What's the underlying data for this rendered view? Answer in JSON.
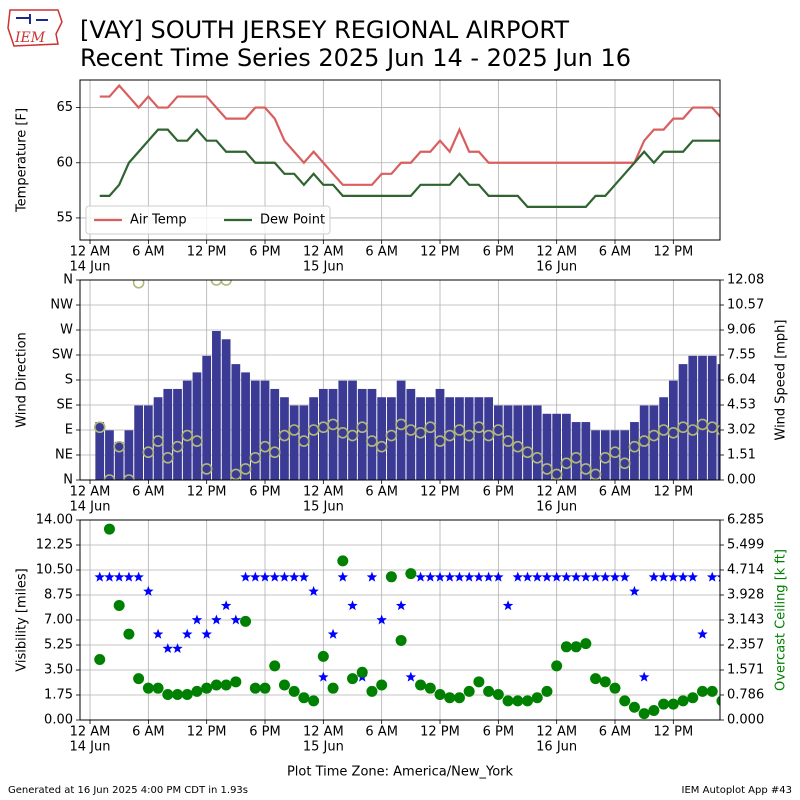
{
  "header": {
    "title": "[VAY] SOUTH JERSEY REGIONAL AIRPORT",
    "subtitle": "Recent Time Series 2025 Jun 14 - 2025 Jun 16",
    "logo_text": "IEM"
  },
  "footer": {
    "left": "Generated at 16 Jun 2025 4:00 PM CDT in 1.93s",
    "right": "IEM Autoplot App #43"
  },
  "chart_data": [
    {
      "type": "line",
      "ylabel": "Temperature [F]",
      "grid": true,
      "legend": "lower left",
      "xlim": [
        -1.03,
        64.8
      ],
      "xticks": [
        {
          "value": 0,
          "label": "12 AM"
        },
        {
          "value": 6,
          "label": "6 AM"
        },
        {
          "value": 12,
          "label": "12 PM"
        },
        {
          "value": 18,
          "label": "6 PM"
        },
        {
          "value": 24,
          "label": "12 AM"
        },
        {
          "value": 30,
          "label": "6 AM"
        },
        {
          "value": 36,
          "label": "12 PM"
        },
        {
          "value": 42,
          "label": "6 PM"
        },
        {
          "value": 48,
          "label": "12 AM"
        },
        {
          "value": 54,
          "label": "6 AM"
        },
        {
          "value": 60,
          "label": "12 PM"
        }
      ],
      "xtick_dates": [
        {
          "value": 0,
          "label": "14 Jun"
        },
        {
          "value": 24,
          "label": "15 Jun"
        },
        {
          "value": 48,
          "label": "16 Jun"
        }
      ],
      "ylim": [
        53,
        67.5
      ],
      "yticks": [
        55,
        60,
        65
      ],
      "x": [
        1,
        2,
        3,
        4,
        5,
        6,
        7,
        8,
        9,
        10,
        11,
        12,
        13,
        14,
        15,
        16,
        17,
        18,
        19,
        20,
        21,
        22,
        23,
        24,
        25,
        26,
        27,
        28,
        29,
        30,
        31,
        32,
        33,
        34,
        35,
        36,
        37,
        38,
        39,
        40,
        41,
        42,
        43,
        44,
        45,
        46,
        47,
        48,
        49,
        50,
        51,
        52,
        53,
        54,
        55,
        56,
        57,
        58,
        59,
        60,
        61,
        62,
        63,
        64,
        65
      ],
      "series": [
        {
          "name": "Air Temp",
          "color": "#d95f5f",
          "values": [
            66,
            66,
            67,
            66,
            65,
            66,
            65,
            65,
            66,
            66,
            66,
            66,
            65,
            64,
            64,
            64,
            65,
            65,
            64,
            62,
            61,
            60,
            61,
            60,
            59,
            58,
            58,
            58,
            58,
            59,
            59,
            60,
            60,
            61,
            61,
            62,
            61,
            63,
            61,
            61,
            60,
            60,
            60,
            60,
            60,
            60,
            60,
            60,
            60,
            60,
            60,
            60,
            60,
            60,
            60,
            60,
            62,
            63,
            63,
            64,
            64,
            65,
            65,
            65,
            64
          ]
        },
        {
          "name": "Dew Point",
          "color": "#2f6330",
          "values": [
            57,
            57,
            58,
            60,
            61,
            62,
            63,
            63,
            62,
            62,
            63,
            62,
            62,
            61,
            61,
            61,
            60,
            60,
            60,
            59,
            59,
            58,
            59,
            58,
            58,
            57,
            57,
            57,
            57,
            57,
            57,
            57,
            57,
            58,
            58,
            58,
            58,
            59,
            58,
            58,
            57,
            57,
            57,
            57,
            56,
            56,
            56,
            56,
            56,
            56,
            56,
            57,
            57,
            58,
            59,
            60,
            61,
            60,
            61,
            61,
            61,
            62,
            62,
            62,
            62
          ]
        }
      ]
    },
    {
      "type": "combo",
      "ylabel": "Wind Direction",
      "y2label": "Wind Speed [mph]",
      "grid": true,
      "xlim": [
        -1.03,
        64.8
      ],
      "xticks": [
        {
          "value": 0,
          "label": "12 AM"
        },
        {
          "value": 6,
          "label": "6 AM"
        },
        {
          "value": 12,
          "label": "12 PM"
        },
        {
          "value": 18,
          "label": "6 PM"
        },
        {
          "value": 24,
          "label": "12 AM"
        },
        {
          "value": 30,
          "label": "6 AM"
        },
        {
          "value": 36,
          "label": "12 PM"
        },
        {
          "value": 42,
          "label": "6 PM"
        },
        {
          "value": 48,
          "label": "12 AM"
        },
        {
          "value": 54,
          "label": "6 AM"
        },
        {
          "value": 60,
          "label": "12 PM"
        }
      ],
      "xtick_dates": [
        {
          "value": 0,
          "label": "14 Jun"
        },
        {
          "value": 24,
          "label": "15 Jun"
        },
        {
          "value": 48,
          "label": "16 Jun"
        }
      ],
      "ylim": [
        0,
        360
      ],
      "yticks": [
        {
          "value": 0,
          "label": "N"
        },
        {
          "value": 45,
          "label": "NE"
        },
        {
          "value": 90,
          "label": "E"
        },
        {
          "value": 135,
          "label": "SE"
        },
        {
          "value": 180,
          "label": "S"
        },
        {
          "value": 225,
          "label": "SW"
        },
        {
          "value": 270,
          "label": "W"
        },
        {
          "value": 315,
          "label": "NW"
        },
        {
          "value": 360,
          "label": "N"
        }
      ],
      "y2lim": [
        0,
        12.08
      ],
      "y2ticks": [
        {
          "value": 0,
          "label": "0.00"
        },
        1.51,
        3.02,
        4.53,
        6.04,
        7.55,
        9.06,
        10.57,
        12.08
      ],
      "x": [
        1,
        2,
        3,
        4,
        5,
        6,
        7,
        8,
        9,
        10,
        11,
        12,
        13,
        14,
        15,
        16,
        17,
        18,
        19,
        20,
        21,
        22,
        23,
        24,
        25,
        26,
        27,
        28,
        29,
        30,
        31,
        32,
        33,
        34,
        35,
        36,
        37,
        38,
        39,
        40,
        41,
        42,
        43,
        44,
        45,
        46,
        47,
        48,
        49,
        50,
        51,
        52,
        53,
        54,
        55,
        56,
        57,
        58,
        59,
        60,
        61,
        62,
        63,
        64,
        65
      ],
      "series": [
        {
          "kind": "bar",
          "axis": "y2",
          "color": "#3b3b96",
          "values": [
            3.5,
            3,
            2.3,
            3,
            4.5,
            4.5,
            5,
            5.5,
            5.5,
            6,
            6.5,
            7.5,
            9,
            8.5,
            7,
            6.5,
            6,
            6,
            5.5,
            5,
            4.5,
            4.5,
            5,
            5.5,
            5.5,
            6,
            6,
            5.5,
            5.5,
            5,
            5,
            6,
            5.5,
            5,
            5,
            5.5,
            5,
            5,
            5,
            5,
            5,
            4.5,
            4.5,
            4.5,
            4.5,
            4.5,
            4,
            4,
            4,
            3.5,
            3.5,
            3,
            3,
            3,
            3,
            3.5,
            4.5,
            4.5,
            5,
            6,
            7,
            7.5,
            7.5,
            7.5,
            7
          ]
        },
        {
          "kind": "scatter",
          "marker": "circle",
          "color": "#b3b878",
          "values": [
            95,
            0,
            60,
            0,
            355,
            50,
            70,
            40,
            60,
            80,
            70,
            20,
            360,
            360,
            10,
            20,
            40,
            60,
            50,
            80,
            90,
            70,
            90,
            95,
            100,
            85,
            80,
            95,
            70,
            60,
            80,
            100,
            90,
            85,
            95,
            70,
            80,
            90,
            80,
            95,
            80,
            90,
            70,
            60,
            50,
            40,
            20,
            10,
            30,
            40,
            20,
            10,
            40,
            50,
            30,
            60,
            70,
            80,
            90,
            85,
            95,
            90,
            100,
            95,
            90
          ]
        }
      ]
    },
    {
      "type": "combo",
      "ylabel": "Visibility [miles]",
      "y2label": "Overcast Ceiling [k ft]",
      "y2label_color": "#008000",
      "xlabel": "Plot Time Zone: America/New_York",
      "grid": true,
      "xlim": [
        -1.03,
        64.8
      ],
      "xticks": [
        {
          "value": 0,
          "label": "12 AM"
        },
        {
          "value": 6,
          "label": "6 AM"
        },
        {
          "value": 12,
          "label": "12 PM"
        },
        {
          "value": 18,
          "label": "6 PM"
        },
        {
          "value": 24,
          "label": "12 AM"
        },
        {
          "value": 30,
          "label": "6 AM"
        },
        {
          "value": 36,
          "label": "12 PM"
        },
        {
          "value": 42,
          "label": "6 PM"
        },
        {
          "value": 48,
          "label": "12 AM"
        },
        {
          "value": 54,
          "label": "6 AM"
        },
        {
          "value": 60,
          "label": "12 PM"
        }
      ],
      "xtick_dates": [
        {
          "value": 0,
          "label": "14 Jun"
        },
        {
          "value": 24,
          "label": "15 Jun"
        },
        {
          "value": 48,
          "label": "16 Jun"
        }
      ],
      "ylim": [
        0,
        14
      ],
      "yticks": [
        {
          "value": 0,
          "label": "0.00"
        },
        1.75,
        {
          "value": 3.5,
          "label": "3.50"
        },
        5.25,
        {
          "value": 7,
          "label": "7.00"
        },
        8.75,
        {
          "value": 10.5,
          "label": "10.50"
        },
        12.25,
        {
          "value": 14,
          "label": "14.00"
        }
      ],
      "y2lim": [
        0,
        6.285
      ],
      "y2ticks": [
        {
          "value": 0,
          "label": "0.000"
        },
        0.786,
        1.571,
        2.357,
        3.143,
        3.928,
        4.714,
        5.499,
        6.285
      ],
      "x": [
        1,
        2,
        3,
        4,
        5,
        6,
        7,
        8,
        9,
        10,
        11,
        12,
        13,
        14,
        15,
        16,
        17,
        18,
        19,
        20,
        21,
        22,
        23,
        24,
        25,
        26,
        27,
        28,
        29,
        30,
        31,
        32,
        33,
        34,
        35,
        36,
        37,
        38,
        39,
        40,
        41,
        42,
        43,
        44,
        45,
        46,
        47,
        48,
        49,
        50,
        51,
        52,
        53,
        54,
        55,
        56,
        57,
        58,
        59,
        60,
        61,
        62,
        63,
        64,
        65
      ],
      "series": [
        {
          "kind": "scatter",
          "marker": "star",
          "color": "#0000ff",
          "values": [
            10,
            10,
            10,
            10,
            10,
            9,
            6,
            5,
            5,
            6,
            7,
            6,
            7,
            8,
            7,
            10,
            10,
            10,
            10,
            10,
            10,
            10,
            9,
            3,
            6,
            10,
            8,
            3,
            10,
            7,
            10,
            8,
            3,
            10,
            10,
            10,
            10,
            10,
            10,
            10,
            10,
            10,
            8,
            10,
            10,
            10,
            10,
            10,
            10,
            10,
            10,
            10,
            10,
            10,
            10,
            9,
            3,
            10,
            10,
            10,
            10,
            10,
            6,
            10,
            10
          ]
        },
        {
          "kind": "scatter",
          "marker": "dot",
          "axis": "y2",
          "color": "#008000",
          "values": [
            1.9,
            6.0,
            3.6,
            2.7,
            1.3,
            1.0,
            1.0,
            0.8,
            0.8,
            0.8,
            0.9,
            1.0,
            1.1,
            1.1,
            1.2,
            3.1,
            1.0,
            1.0,
            1.7,
            1.1,
            0.9,
            0.7,
            0.6,
            2.0,
            1.0,
            5.0,
            1.3,
            1.5,
            0.9,
            1.1,
            4.5,
            2.5,
            4.6,
            1.1,
            1.0,
            0.8,
            0.7,
            0.7,
            0.9,
            1.2,
            0.9,
            0.8,
            0.6,
            0.6,
            0.6,
            0.7,
            0.9,
            1.7,
            2.3,
            2.3,
            2.4,
            1.3,
            1.2,
            1.0,
            0.6,
            0.4,
            0.2,
            0.3,
            0.5,
            0.5,
            0.6,
            0.7,
            0.9,
            0.9,
            0.6
          ]
        }
      ]
    }
  ]
}
